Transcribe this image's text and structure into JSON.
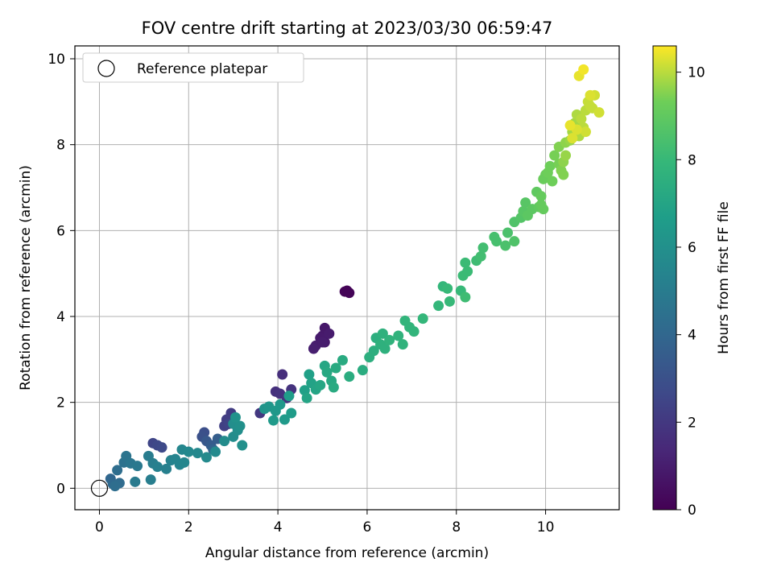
{
  "chart_data": {
    "type": "scatter",
    "title": "FOV centre drift starting at 2023/03/30 06:59:47",
    "xlabel": "Angular distance from reference (arcmin)",
    "ylabel": "Rotation from reference (arcmin)",
    "xlim": [
      -0.55,
      11.65
    ],
    "ylim": [
      -0.5,
      10.3
    ],
    "xticks": [
      0,
      2,
      4,
      6,
      8,
      10
    ],
    "yticks": [
      0,
      2,
      4,
      6,
      8,
      10
    ],
    "grid": true,
    "legend": {
      "location": "upper-left",
      "entries": [
        {
          "label": "Reference platepar",
          "marker": "open-circle"
        }
      ]
    },
    "reference_point": {
      "x": 0,
      "y": 0
    },
    "colorbar": {
      "label": "Hours from first FF file",
      "colormap": "viridis",
      "min": 0,
      "max": 10.6,
      "ticks": [
        0,
        2,
        4,
        6,
        8,
        10
      ]
    },
    "points": [
      {
        "x": 5.55,
        "y": 4.6,
        "h": 0.1
      },
      {
        "x": 5.6,
        "y": 4.55,
        "h": 0.12
      },
      {
        "x": 5.5,
        "y": 4.58,
        "h": 0.1
      },
      {
        "x": 5.05,
        "y": 3.73,
        "h": 0.8
      },
      {
        "x": 5.0,
        "y": 3.55,
        "h": 0.85
      },
      {
        "x": 4.95,
        "y": 3.5,
        "h": 0.9
      },
      {
        "x": 5.05,
        "y": 3.4,
        "h": 0.9
      },
      {
        "x": 4.85,
        "y": 3.32,
        "h": 1.0
      },
      {
        "x": 4.8,
        "y": 3.25,
        "h": 1.05
      },
      {
        "x": 5.0,
        "y": 3.4,
        "h": 1.0
      },
      {
        "x": 5.15,
        "y": 3.6,
        "h": 0.95
      },
      {
        "x": 4.1,
        "y": 2.65,
        "h": 1.6
      },
      {
        "x": 3.95,
        "y": 2.25,
        "h": 1.7
      },
      {
        "x": 4.05,
        "y": 2.2,
        "h": 1.75
      },
      {
        "x": 4.3,
        "y": 2.3,
        "h": 1.8
      },
      {
        "x": 4.2,
        "y": 2.1,
        "h": 1.85
      },
      {
        "x": 3.6,
        "y": 1.75,
        "h": 2.0
      },
      {
        "x": 2.95,
        "y": 1.75,
        "h": 2.1
      },
      {
        "x": 2.85,
        "y": 1.6,
        "h": 2.2
      },
      {
        "x": 2.8,
        "y": 1.45,
        "h": 2.3
      },
      {
        "x": 2.9,
        "y": 1.5,
        "h": 2.4
      },
      {
        "x": 1.2,
        "y": 1.05,
        "h": 2.5
      },
      {
        "x": 1.3,
        "y": 1.0,
        "h": 2.6
      },
      {
        "x": 1.4,
        "y": 0.95,
        "h": 2.7
      },
      {
        "x": 2.35,
        "y": 1.3,
        "h": 2.9
      },
      {
        "x": 2.3,
        "y": 1.2,
        "h": 3.0
      },
      {
        "x": 2.4,
        "y": 1.1,
        "h": 3.3
      },
      {
        "x": 2.5,
        "y": 1.0,
        "h": 3.5
      },
      {
        "x": 2.65,
        "y": 1.15,
        "h": 3.6
      },
      {
        "x": 2.55,
        "y": 0.9,
        "h": 3.8
      },
      {
        "x": 0.25,
        "y": 0.22,
        "h": 4.0
      },
      {
        "x": 0.3,
        "y": 0.1,
        "h": 4.1
      },
      {
        "x": 0.45,
        "y": 0.12,
        "h": 4.2
      },
      {
        "x": 0.4,
        "y": 0.42,
        "h": 4.3
      },
      {
        "x": 0.35,
        "y": 0.05,
        "h": 4.3
      },
      {
        "x": 0.55,
        "y": 0.6,
        "h": 4.5
      },
      {
        "x": 0.6,
        "y": 0.75,
        "h": 4.6
      },
      {
        "x": 0.7,
        "y": 0.58,
        "h": 4.7
      },
      {
        "x": 0.85,
        "y": 0.52,
        "h": 4.8
      },
      {
        "x": 0.8,
        "y": 0.15,
        "h": 4.9
      },
      {
        "x": 1.1,
        "y": 0.75,
        "h": 5.0
      },
      {
        "x": 1.2,
        "y": 0.58,
        "h": 5.1
      },
      {
        "x": 1.15,
        "y": 0.2,
        "h": 5.1
      },
      {
        "x": 1.3,
        "y": 0.5,
        "h": 5.2
      },
      {
        "x": 1.5,
        "y": 0.45,
        "h": 5.2
      },
      {
        "x": 1.6,
        "y": 0.65,
        "h": 5.3
      },
      {
        "x": 1.7,
        "y": 0.68,
        "h": 5.4
      },
      {
        "x": 1.8,
        "y": 0.55,
        "h": 5.4
      },
      {
        "x": 1.9,
        "y": 0.6,
        "h": 5.5
      },
      {
        "x": 1.85,
        "y": 0.9,
        "h": 5.5
      },
      {
        "x": 2.0,
        "y": 0.85,
        "h": 5.6
      },
      {
        "x": 2.2,
        "y": 0.82,
        "h": 5.6
      },
      {
        "x": 2.4,
        "y": 0.72,
        "h": 5.7
      },
      {
        "x": 2.6,
        "y": 0.85,
        "h": 5.7
      },
      {
        "x": 2.8,
        "y": 1.1,
        "h": 5.8
      },
      {
        "x": 3.0,
        "y": 1.2,
        "h": 5.8
      },
      {
        "x": 3.1,
        "y": 1.35,
        "h": 5.9
      },
      {
        "x": 3.0,
        "y": 1.5,
        "h": 5.9
      },
      {
        "x": 3.15,
        "y": 1.45,
        "h": 6.0
      },
      {
        "x": 3.2,
        "y": 1.0,
        "h": 6.0
      },
      {
        "x": 3.05,
        "y": 1.65,
        "h": 6.1
      },
      {
        "x": 3.7,
        "y": 1.85,
        "h": 6.2
      },
      {
        "x": 3.8,
        "y": 1.9,
        "h": 6.3
      },
      {
        "x": 3.95,
        "y": 1.8,
        "h": 6.4
      },
      {
        "x": 4.05,
        "y": 1.95,
        "h": 6.4
      },
      {
        "x": 4.15,
        "y": 1.6,
        "h": 6.5
      },
      {
        "x": 3.9,
        "y": 1.58,
        "h": 6.5
      },
      {
        "x": 4.3,
        "y": 1.75,
        "h": 6.6
      },
      {
        "x": 4.25,
        "y": 2.15,
        "h": 6.7
      },
      {
        "x": 4.6,
        "y": 2.28,
        "h": 6.8
      },
      {
        "x": 4.7,
        "y": 2.65,
        "h": 6.8
      },
      {
        "x": 4.75,
        "y": 2.45,
        "h": 6.9
      },
      {
        "x": 4.65,
        "y": 2.1,
        "h": 7.0
      },
      {
        "x": 4.85,
        "y": 2.3,
        "h": 7.0
      },
      {
        "x": 4.95,
        "y": 2.4,
        "h": 7.1
      },
      {
        "x": 5.05,
        "y": 2.85,
        "h": 7.1
      },
      {
        "x": 5.1,
        "y": 2.7,
        "h": 7.2
      },
      {
        "x": 5.2,
        "y": 2.5,
        "h": 7.2
      },
      {
        "x": 5.25,
        "y": 2.35,
        "h": 7.3
      },
      {
        "x": 5.3,
        "y": 2.8,
        "h": 7.3
      },
      {
        "x": 5.45,
        "y": 2.98,
        "h": 7.3
      },
      {
        "x": 5.6,
        "y": 2.6,
        "h": 7.4
      },
      {
        "x": 5.9,
        "y": 2.75,
        "h": 7.4
      },
      {
        "x": 6.05,
        "y": 3.05,
        "h": 7.5
      },
      {
        "x": 6.15,
        "y": 3.2,
        "h": 7.5
      },
      {
        "x": 6.2,
        "y": 3.5,
        "h": 7.5
      },
      {
        "x": 6.3,
        "y": 3.35,
        "h": 7.6
      },
      {
        "x": 6.35,
        "y": 3.6,
        "h": 7.6
      },
      {
        "x": 6.4,
        "y": 3.25,
        "h": 7.6
      },
      {
        "x": 6.5,
        "y": 3.45,
        "h": 7.7
      },
      {
        "x": 6.7,
        "y": 3.55,
        "h": 7.7
      },
      {
        "x": 6.8,
        "y": 3.35,
        "h": 7.7
      },
      {
        "x": 6.85,
        "y": 3.9,
        "h": 7.8
      },
      {
        "x": 6.95,
        "y": 3.75,
        "h": 7.8
      },
      {
        "x": 7.05,
        "y": 3.65,
        "h": 7.8
      },
      {
        "x": 7.25,
        "y": 3.95,
        "h": 7.9
      },
      {
        "x": 7.6,
        "y": 4.25,
        "h": 7.9
      },
      {
        "x": 7.7,
        "y": 4.7,
        "h": 7.9
      },
      {
        "x": 7.8,
        "y": 4.65,
        "h": 8.0
      },
      {
        "x": 7.85,
        "y": 4.35,
        "h": 8.0
      },
      {
        "x": 8.1,
        "y": 4.6,
        "h": 8.0
      },
      {
        "x": 8.15,
        "y": 4.95,
        "h": 8.1
      },
      {
        "x": 8.2,
        "y": 5.25,
        "h": 8.1
      },
      {
        "x": 8.25,
        "y": 5.05,
        "h": 8.1
      },
      {
        "x": 8.2,
        "y": 4.45,
        "h": 8.2
      },
      {
        "x": 8.45,
        "y": 5.3,
        "h": 8.2
      },
      {
        "x": 8.55,
        "y": 5.4,
        "h": 8.3
      },
      {
        "x": 8.6,
        "y": 5.6,
        "h": 8.3
      },
      {
        "x": 8.85,
        "y": 5.85,
        "h": 8.4
      },
      {
        "x": 8.9,
        "y": 5.75,
        "h": 8.4
      },
      {
        "x": 9.1,
        "y": 5.65,
        "h": 8.5
      },
      {
        "x": 9.15,
        "y": 5.95,
        "h": 8.5
      },
      {
        "x": 9.3,
        "y": 5.75,
        "h": 8.6
      },
      {
        "x": 9.3,
        "y": 6.2,
        "h": 8.6
      },
      {
        "x": 9.45,
        "y": 6.3,
        "h": 8.7
      },
      {
        "x": 9.5,
        "y": 6.45,
        "h": 8.8
      },
      {
        "x": 9.55,
        "y": 6.65,
        "h": 8.8
      },
      {
        "x": 9.6,
        "y": 6.35,
        "h": 8.9
      },
      {
        "x": 9.7,
        "y": 6.5,
        "h": 8.9
      },
      {
        "x": 9.8,
        "y": 6.9,
        "h": 9.0
      },
      {
        "x": 9.85,
        "y": 6.55,
        "h": 9.0
      },
      {
        "x": 9.9,
        "y": 6.8,
        "h": 9.1
      },
      {
        "x": 9.95,
        "y": 6.5,
        "h": 9.1
      },
      {
        "x": 9.9,
        "y": 6.6,
        "h": 9.1
      },
      {
        "x": 9.95,
        "y": 7.2,
        "h": 9.2
      },
      {
        "x": 10.0,
        "y": 7.3,
        "h": 9.2
      },
      {
        "x": 10.05,
        "y": 7.35,
        "h": 9.3
      },
      {
        "x": 10.15,
        "y": 7.15,
        "h": 9.3
      },
      {
        "x": 10.1,
        "y": 7.5,
        "h": 9.3
      },
      {
        "x": 10.2,
        "y": 7.75,
        "h": 9.4
      },
      {
        "x": 10.3,
        "y": 7.55,
        "h": 9.4
      },
      {
        "x": 10.35,
        "y": 7.4,
        "h": 9.5
      },
      {
        "x": 10.4,
        "y": 7.3,
        "h": 9.5
      },
      {
        "x": 10.3,
        "y": 7.95,
        "h": 9.5
      },
      {
        "x": 10.4,
        "y": 7.6,
        "h": 9.6
      },
      {
        "x": 10.45,
        "y": 8.05,
        "h": 9.6
      },
      {
        "x": 10.45,
        "y": 7.75,
        "h": 9.7
      },
      {
        "x": 10.55,
        "y": 8.1,
        "h": 9.7
      },
      {
        "x": 10.6,
        "y": 8.3,
        "h": 9.8
      },
      {
        "x": 10.65,
        "y": 8.5,
        "h": 9.8
      },
      {
        "x": 10.7,
        "y": 8.7,
        "h": 9.9
      },
      {
        "x": 10.75,
        "y": 8.2,
        "h": 9.9
      },
      {
        "x": 10.8,
        "y": 8.6,
        "h": 10.0
      },
      {
        "x": 10.85,
        "y": 8.4,
        "h": 10.0
      },
      {
        "x": 10.9,
        "y": 8.8,
        "h": 10.0
      },
      {
        "x": 10.95,
        "y": 9.0,
        "h": 10.1
      },
      {
        "x": 11.0,
        "y": 8.9,
        "h": 10.1
      },
      {
        "x": 11.05,
        "y": 8.85,
        "h": 10.1
      },
      {
        "x": 11.1,
        "y": 9.15,
        "h": 10.2
      },
      {
        "x": 11.2,
        "y": 8.75,
        "h": 10.2
      },
      {
        "x": 10.9,
        "y": 8.3,
        "h": 10.2
      },
      {
        "x": 11.0,
        "y": 9.15,
        "h": 10.3
      },
      {
        "x": 10.75,
        "y": 9.6,
        "h": 10.4
      },
      {
        "x": 10.85,
        "y": 9.75,
        "h": 10.5
      },
      {
        "x": 10.6,
        "y": 8.15,
        "h": 10.3
      },
      {
        "x": 10.7,
        "y": 8.35,
        "h": 10.3
      },
      {
        "x": 10.55,
        "y": 8.45,
        "h": 10.4
      }
    ]
  }
}
